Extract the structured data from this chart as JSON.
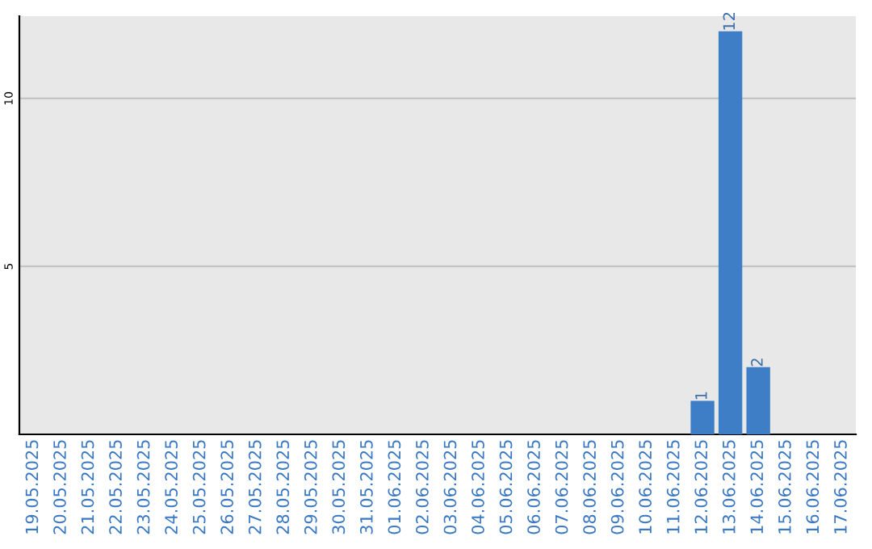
{
  "chart_data": {
    "type": "bar",
    "categories": [
      "19.05.2025",
      "20.05.2025",
      "21.05.2025",
      "22.05.2025",
      "23.05.2025",
      "24.05.2025",
      "25.05.2025",
      "26.05.2025",
      "27.05.2025",
      "28.05.2025",
      "29.05.2025",
      "30.05.2025",
      "31.05.2025",
      "01.06.2025",
      "02.06.2025",
      "03.06.2025",
      "04.06.2025",
      "05.06.2025",
      "06.06.2025",
      "07.06.2025",
      "08.06.2025",
      "09.06.2025",
      "10.06.2025",
      "11.06.2025",
      "12.06.2025",
      "13.06.2025",
      "14.06.2025",
      "15.06.2025",
      "16.06.2025",
      "17.06.2025"
    ],
    "values": [
      0,
      0,
      0,
      0,
      0,
      0,
      0,
      0,
      0,
      0,
      0,
      0,
      0,
      0,
      0,
      0,
      0,
      0,
      0,
      0,
      0,
      0,
      0,
      0,
      1,
      12,
      2,
      0,
      0,
      0
    ],
    "value_labels": [
      null,
      null,
      null,
      null,
      null,
      null,
      null,
      null,
      null,
      null,
      null,
      null,
      null,
      null,
      null,
      null,
      null,
      null,
      null,
      null,
      null,
      null,
      null,
      null,
      "1",
      "12",
      "2",
      null,
      null,
      null
    ],
    "color": "#3d7ec6",
    "ylim": [
      0,
      12.45
    ],
    "yticks": [
      5,
      10
    ],
    "grid": "y"
  }
}
